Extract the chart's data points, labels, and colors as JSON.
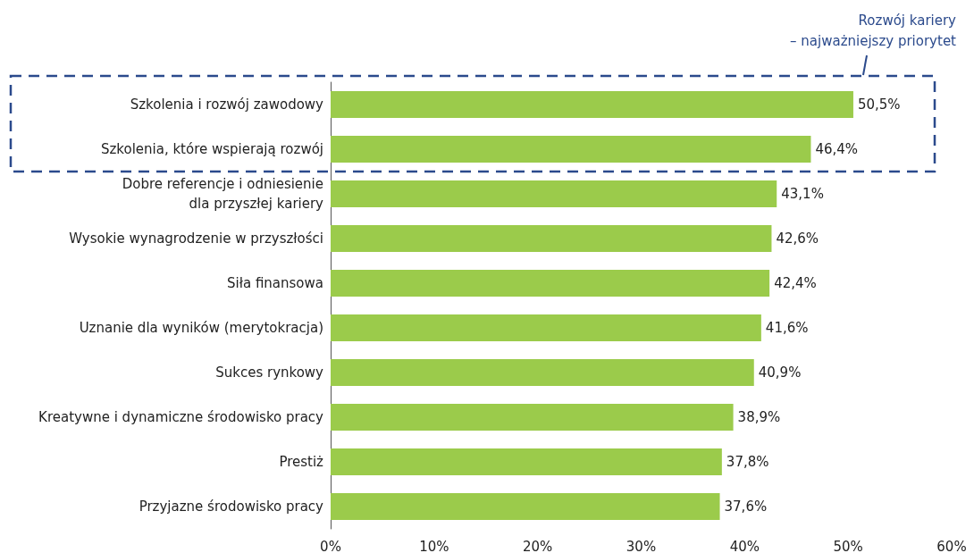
{
  "chart_data": {
    "type": "bar",
    "orientation": "horizontal",
    "categories": [
      "Szkolenia i rozwój zawodowy",
      "Szkolenia, które wspierają rozwój",
      "Dobre referencje i odniesienie\ndla przyszłej kariery",
      "Wysokie wynagrodzenie w przyszłości",
      "Siła finansowa",
      "Uznanie dla wyników (merytokracja)",
      "Sukces rynkowy",
      "Kreatywne i dynamiczne środowisko pracy",
      "Prestiż",
      "Przyjazne środowisko pracy"
    ],
    "values": [
      50.5,
      46.4,
      43.1,
      42.6,
      42.4,
      41.6,
      40.9,
      38.9,
      37.8,
      37.6
    ],
    "value_labels": [
      "50,5%",
      "46,4%",
      "43,1%",
      "42,6%",
      "42,4%",
      "41,6%",
      "40,9%",
      "38,9%",
      "37,8%",
      "37,6%"
    ],
    "color": "#9bcb4b",
    "xlim": [
      0,
      60
    ],
    "xticks": [
      {
        "value": 0,
        "label": "0%"
      },
      {
        "value": 10,
        "label": "10%"
      },
      {
        "value": 20,
        "label": "20%"
      },
      {
        "value": 30,
        "label": "30%"
      },
      {
        "value": 40,
        "label": "40%"
      },
      {
        "value": 50,
        "label": "50%"
      },
      {
        "value": 60,
        "label": "60%"
      }
    ],
    "grid": false,
    "annotations": [
      "Rozwój kariery\n– najważniejszy priorytet"
    ]
  }
}
